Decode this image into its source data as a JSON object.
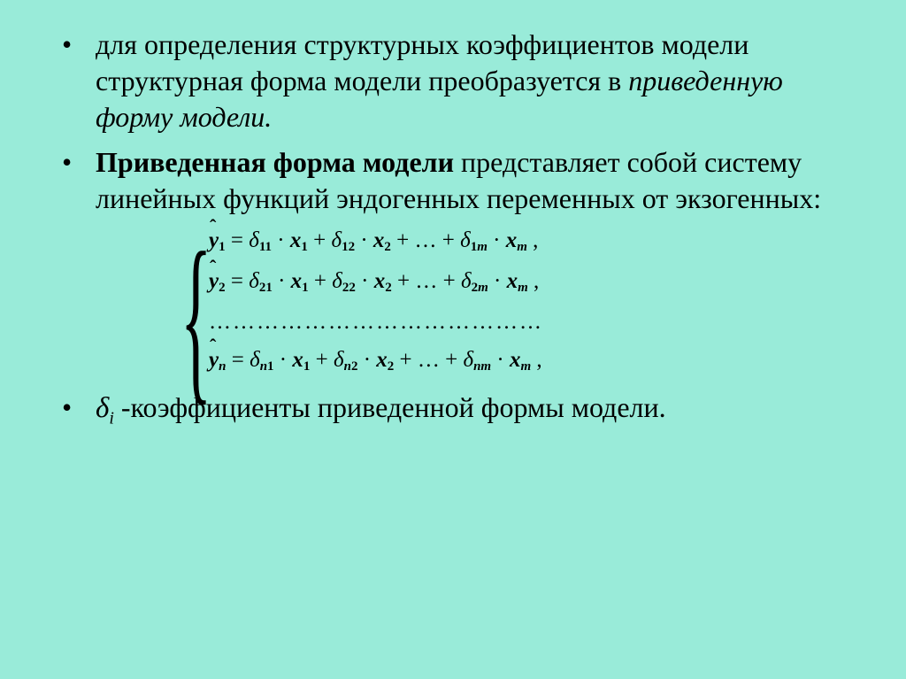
{
  "background_color": "#99ebd9",
  "text_color": "#000000",
  "font_family": "Times New Roman",
  "bullets": {
    "b1_part1": "для определения структурных коэффициентов модели структурная форма модели преобразуется в ",
    "b1_part2_italic": "приведенную форму модели.",
    "b2_bold": "Приведенная форма модели",
    "b2_rest": " представляет собой систему линейных функций эндогенных переменных от экзогенных:",
    "b3_symbol": "δ",
    "b3_sub": "i",
    "b3_text": " -коэффициенты приведенной формы модели."
  },
  "equations": {
    "rows": [
      {
        "y_sub": "1",
        "d1": "11",
        "d2": "12",
        "dm_a": "1",
        "dm_b": "m"
      },
      {
        "y_sub": "2",
        "d1": "21",
        "d2": "22",
        "dm_a": "2",
        "dm_b": "m"
      }
    ],
    "dots_row": "……………………………………",
    "lastrow": {
      "y_sub": "n",
      "d1a": "n",
      "d1b": "1",
      "d2a": "n",
      "d2b": "2",
      "dm_a": "n",
      "dm_b": "m"
    },
    "symbols": {
      "y": "y",
      "delta": "δ",
      "x": "x",
      "eq": " = ",
      "cdot": " · ",
      "plus": " + ",
      "ldots": "+ … +",
      "comma": ","
    },
    "style": {
      "fontsize_main": 25,
      "fontsize_sub": 15,
      "line_spacing": 12,
      "brace_fontsize": 210,
      "left_margin": 170
    }
  }
}
